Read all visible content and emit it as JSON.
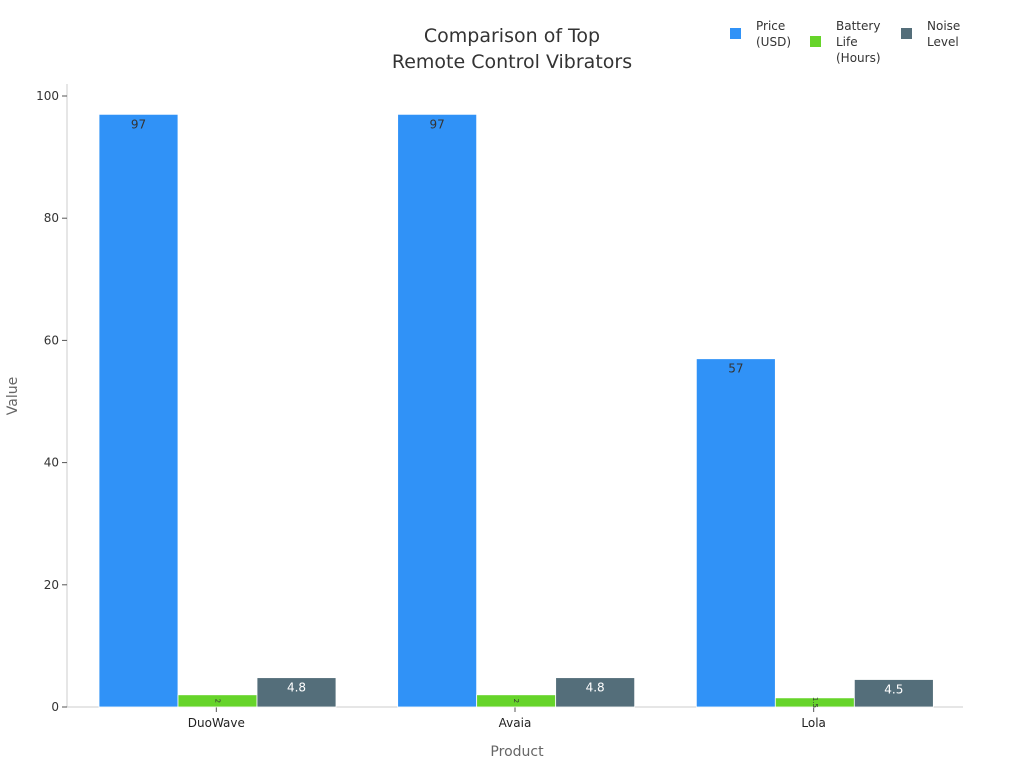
{
  "chart_data": {
    "type": "bar",
    "title": "Comparison of Top\nRemote Control Vibrators",
    "title_lines": [
      "Comparison of Top",
      "Remote Control Vibrators"
    ],
    "xlabel": "Product",
    "ylabel": "Value",
    "ylim": [
      0,
      100
    ],
    "yticks": [
      0,
      20,
      40,
      60,
      80,
      100
    ],
    "categories": [
      "DuoWave",
      "Avaia",
      "Lola"
    ],
    "series": [
      {
        "name": "Price (USD)",
        "legend_lines": [
          "Price",
          "(USD)"
        ],
        "color": "#3092f7",
        "values": [
          97,
          97,
          57
        ],
        "labels": [
          "97",
          "97",
          "57"
        ]
      },
      {
        "name": "Battery Life (Hours)",
        "legend_lines": [
          "Battery",
          "Life",
          "(Hours)"
        ],
        "color": "#66d42a",
        "values": [
          2,
          2,
          1.5
        ],
        "labels": [
          "2",
          "2",
          "1.5"
        ]
      },
      {
        "name": "Noise Level",
        "legend_lines": [
          "Noise",
          "Level"
        ],
        "color": "#546e7a",
        "values": [
          4.8,
          4.8,
          4.5
        ],
        "labels": [
          "4.8",
          "4.8",
          "4.5"
        ]
      }
    ],
    "grid": false,
    "legend_position": "top-right"
  }
}
